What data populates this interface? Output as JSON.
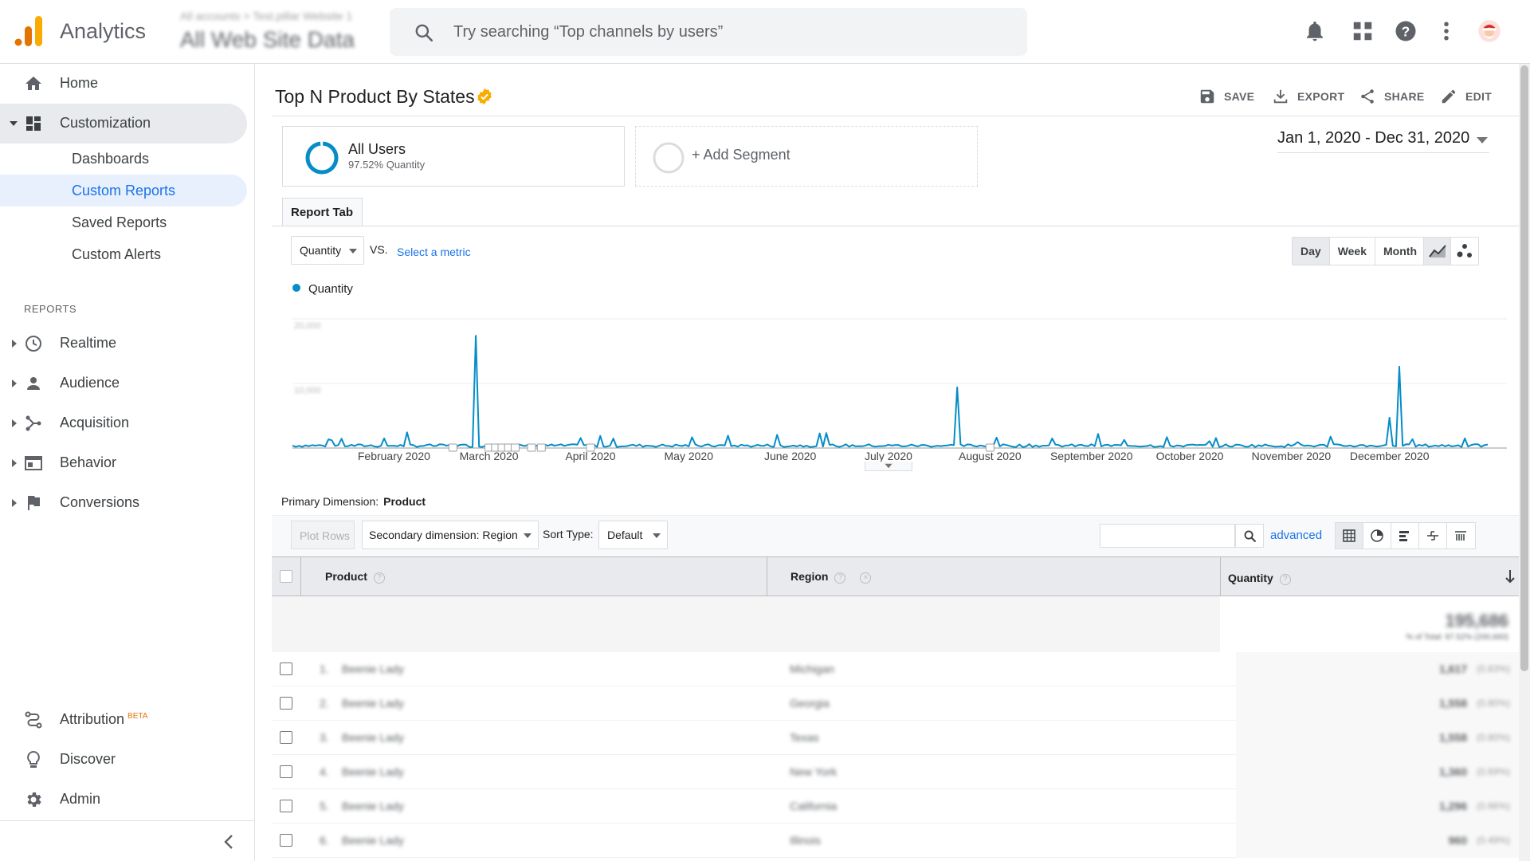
{
  "header": {
    "app_title": "Analytics",
    "account_path": "All accounts > Test.pillar Website 1",
    "view_name": "All Web Site Data",
    "search_placeholder": "Try searching “Top channels by users”"
  },
  "sidebar": {
    "home": "Home",
    "customization": "Customization",
    "sub_items": [
      "Dashboards",
      "Custom Reports",
      "Saved Reports",
      "Custom Alerts"
    ],
    "reports_label": "REPORTS",
    "reports": [
      "Realtime",
      "Audience",
      "Acquisition",
      "Behavior",
      "Conversions"
    ],
    "attribution": "Attribution",
    "beta": "BETA",
    "discover": "Discover",
    "admin": "Admin"
  },
  "report": {
    "title": "Top N Product By States",
    "actions": {
      "save": "SAVE",
      "export": "EXPORT",
      "share": "SHARE",
      "edit": "EDIT"
    },
    "segment_all_users": "All Users",
    "segment_all_users_sub": "97.52% Quantity",
    "add_segment": "+ Add Segment",
    "date_range": "Jan 1, 2020 - Dec 31, 2020",
    "tab": "Report Tab",
    "metric": "Quantity",
    "vs": "VS.",
    "select_metric": "Select a metric",
    "granularity": [
      "Day",
      "Week",
      "Month"
    ],
    "granularity_selected": "Day",
    "legend": "Quantity"
  },
  "chart_data": {
    "type": "line",
    "series": [
      {
        "name": "Quantity",
        "color": "#058dc7"
      }
    ],
    "x_tick_labels": [
      "February 2020",
      "March 2020",
      "April 2020",
      "May 2020",
      "June 2020",
      "July 2020",
      "August 2020",
      "September 2020",
      "October 2020",
      "November 2020",
      "December 2020"
    ],
    "y_tick_labels": [
      "20,000",
      "10,000"
    ],
    "ylim": [
      0,
      20000
    ],
    "peaks": [
      {
        "date": "2020-02-26",
        "value": 17400
      },
      {
        "date": "2020-07-22",
        "value": 9400
      },
      {
        "date": "2020-12-04",
        "value": 12600
      },
      {
        "date": "2020-12-01",
        "value": 4700
      }
    ],
    "baseline_value": 500
  },
  "table": {
    "primary_dimension_label": "Primary Dimension:",
    "primary_dimension": "Product",
    "plot_rows": "Plot Rows",
    "secondary_dimension": "Secondary dimension: Region",
    "sort_type_label": "Sort Type:",
    "sort_type": "Default",
    "advanced": "advanced",
    "columns": [
      "Product",
      "Region",
      "Quantity"
    ],
    "total": "195,686",
    "total_sub": "% of Total: 97.52% (200,660)",
    "rows": [
      {
        "idx": "1.",
        "product": "Beenie Lady",
        "region": "Michigan",
        "qty": "1,617",
        "pct": "(0.83%)"
      },
      {
        "idx": "2.",
        "product": "Beenie Lady",
        "region": "Georgia",
        "qty": "1,558",
        "pct": "(0.80%)"
      },
      {
        "idx": "3.",
        "product": "Beenie Lady",
        "region": "Texas",
        "qty": "1,558",
        "pct": "(0.80%)"
      },
      {
        "idx": "4.",
        "product": "Beenie Lady",
        "region": "New York",
        "qty": "1,360",
        "pct": "(0.69%)"
      },
      {
        "idx": "5.",
        "product": "Beenie Lady",
        "region": "California",
        "qty": "1,296",
        "pct": "(0.66%)"
      },
      {
        "idx": "6.",
        "product": "Beenie Lady",
        "region": "Illinois",
        "qty": "960",
        "pct": "(0.49%)"
      }
    ]
  }
}
